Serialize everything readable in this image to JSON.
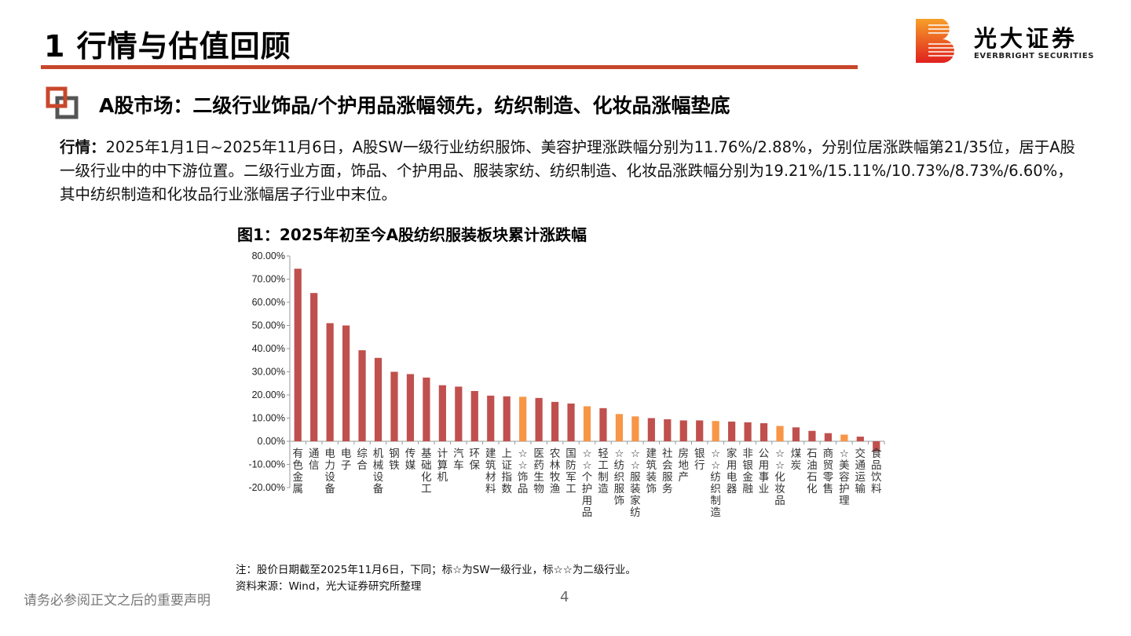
{
  "header": {
    "title": "1 行情与估值回顾",
    "logo_cn": "光大证券",
    "logo_en": "EVERBRIGHT SECURITIES"
  },
  "section": {
    "subtitle": "A股市场：二级行业饰品/个护用品涨幅领先，纺织制造、化妆品涨幅垫底"
  },
  "body": {
    "lead": "行情：",
    "text": "2025年1月1日~2025年11月6日，A股SW一级行业纺织服饰、美容护理涨跌幅分别为11.76%/2.88%，分别位居涨跌幅第21/35位，居于A股一级行业中的中下游位置。二级行业方面，饰品、个护用品、服装家纺、纺织制造、化妆品涨跌幅分别为19.21%/15.11%/10.73%/8.73%/6.60%，其中纺织制造和化妆品行业涨幅居子行业中末位。"
  },
  "figure": {
    "title": "图1：2025年初至今A股纺织服装板块累计涨跌幅",
    "note": "注：股价日期截至2025年11月6日，下同；标☆为SW一级行业，标☆☆为二级行业。",
    "source": "资料来源：Wind，光大证券研究所整理"
  },
  "chart_data": {
    "type": "bar",
    "title": "图1：2025年初至今A股纺织服装板块累计涨跌幅",
    "ylim": [
      -20,
      80
    ],
    "yticks": [
      -20,
      -10,
      0,
      10,
      20,
      30,
      40,
      50,
      60,
      70,
      80
    ],
    "ytick_format": "percent_2dp",
    "grid": false,
    "legend": "none",
    "colors": {
      "default": "#c0504d",
      "highlight": "#f79646"
    },
    "categories": [
      "有色金属",
      "通信",
      "电力设备",
      "电子",
      "综合",
      "机械设备",
      "钢铁",
      "传媒",
      "基础化工",
      "计算机",
      "汽车",
      "环保",
      "建筑材料",
      "上证指数",
      "☆☆饰品",
      "医药生物",
      "农林牧渔",
      "国防军工",
      "☆☆个护用品",
      "轻工制造",
      "☆纺织服饰",
      "☆☆服装家纺",
      "建筑装饰",
      "社会服务",
      "房地产",
      "银行",
      "☆☆纺织制造",
      "家用电器",
      "非银金融",
      "公用事业",
      "☆☆化妆品",
      "煤炭",
      "石油石化",
      "商贸零售",
      "☆美容护理",
      "交通运输",
      "食品饮料"
    ],
    "values": [
      74.5,
      64.0,
      51.0,
      50.0,
      39.3,
      36.0,
      30.0,
      29.0,
      27.5,
      24.2,
      23.6,
      21.7,
      19.7,
      19.4,
      19.21,
      18.7,
      17.0,
      16.3,
      15.11,
      14.3,
      11.76,
      10.73,
      10.0,
      9.5,
      9.0,
      9.0,
      8.73,
      8.5,
      8.2,
      7.8,
      6.6,
      6.0,
      4.5,
      3.5,
      2.88,
      2.0,
      -4.5
    ],
    "highlight": [
      false,
      false,
      false,
      false,
      false,
      false,
      false,
      false,
      false,
      false,
      false,
      false,
      false,
      false,
      true,
      false,
      false,
      false,
      true,
      false,
      true,
      true,
      false,
      false,
      false,
      false,
      true,
      false,
      false,
      false,
      true,
      false,
      false,
      false,
      true,
      false,
      false
    ]
  },
  "footer": {
    "disclaimer": "请务必参阅正文之后的重要声明",
    "page": "4"
  }
}
